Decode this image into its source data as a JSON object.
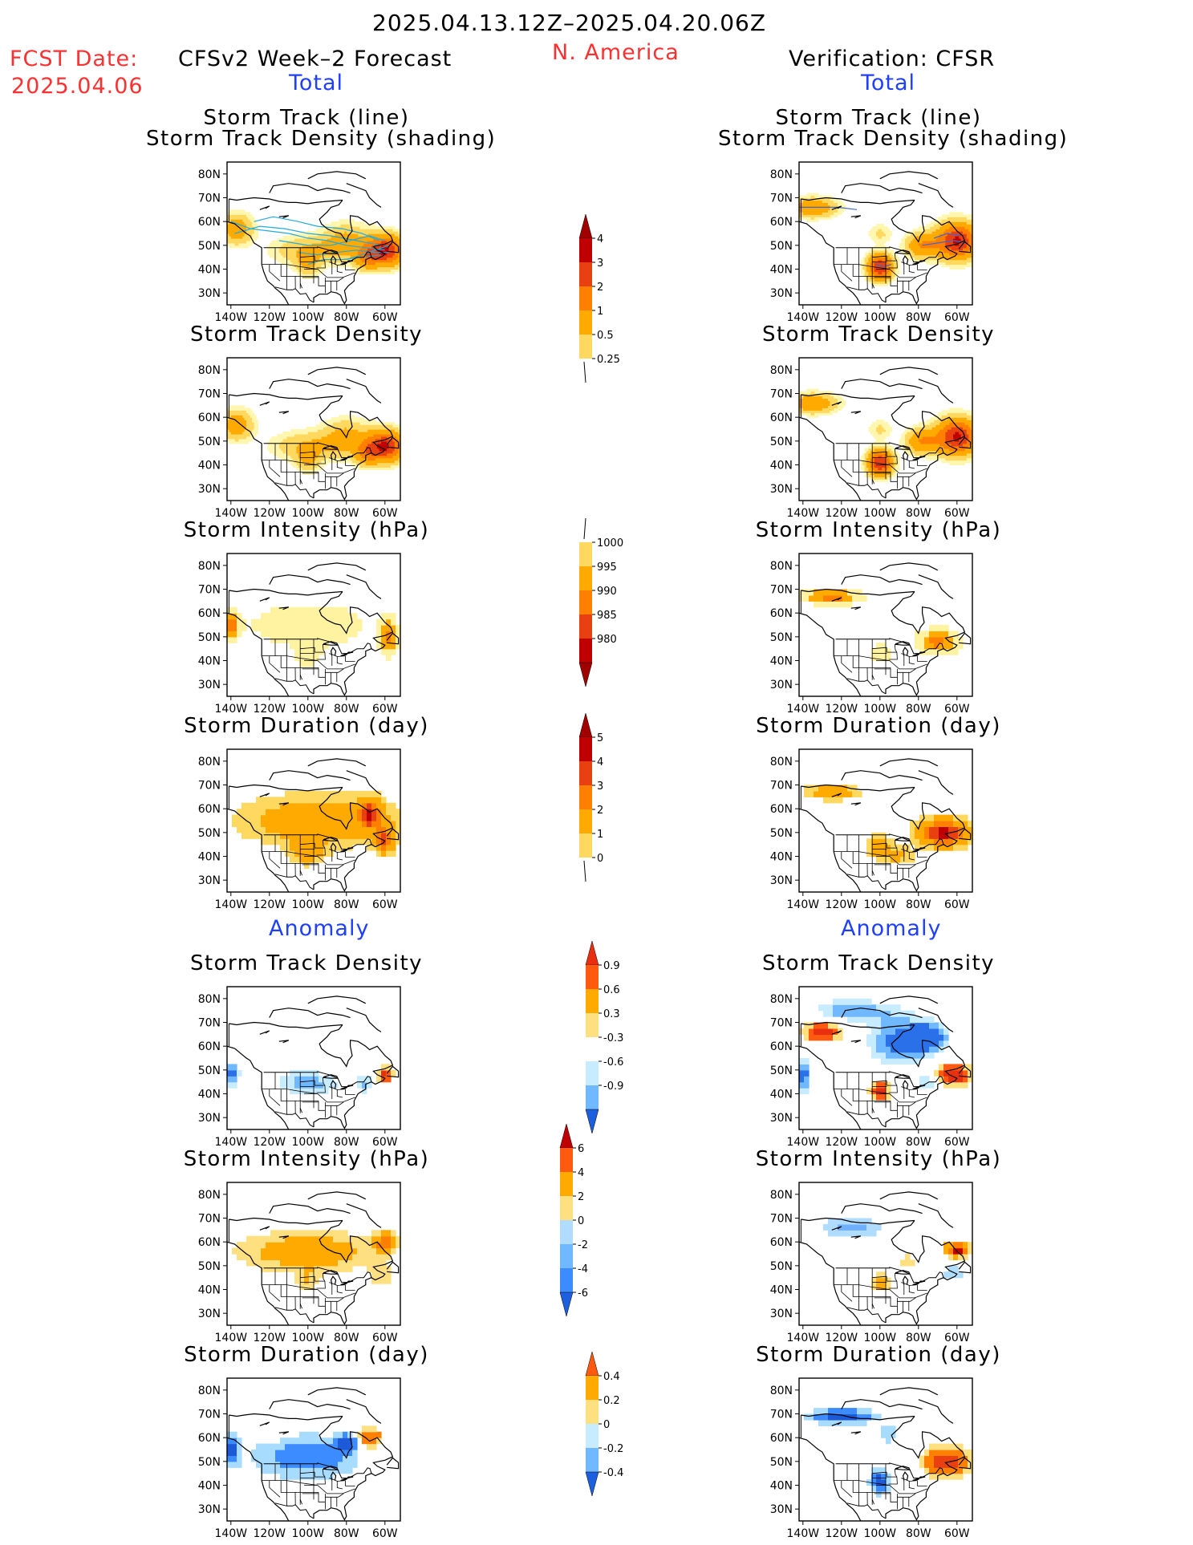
{
  "header": {
    "date_range": "2025.04.13.12Z–2025.04.20.06Z",
    "fcst_label": "FCST Date:",
    "fcst_date": "2025.04.06",
    "left_title": "CFSv2 Week–2 Forecast",
    "region": "N. America",
    "right_title": "Verification: CFSR",
    "total_left": "Total",
    "total_right": "Total",
    "anomaly_left": "Anomaly",
    "anomaly_right": "Anomaly"
  },
  "panel_titles": {
    "track_line": "Storm Track (line)",
    "track_shading": "Storm Track Density (shading)",
    "density": "Storm Track Density",
    "intensity": "Storm Intensity (hPa)",
    "duration": "Storm Duration (day)"
  },
  "axes": {
    "lat_labels": [
      "80N",
      "70N",
      "60N",
      "50N",
      "40N",
      "30N"
    ],
    "lon_labels": [
      "140W",
      "120W",
      "100W",
      "80W",
      "60W"
    ]
  },
  "colors": {
    "warm": [
      "#fff7b0",
      "#ffd860",
      "#ffaa00",
      "#ff8000",
      "#e84010",
      "#c00000",
      "#a00000"
    ],
    "cool": [
      "#cfefff",
      "#a0d8ff",
      "#70b8ff",
      "#3c8cff",
      "#1c60e0"
    ],
    "track_line_fcst": "#22aadd",
    "track_line_ver": "#4466cc"
  },
  "chart_data": [
    {
      "type": "heatmap",
      "panel": "fcst-total-track",
      "title": "Storm Track (line) / Storm Track Density (shading)",
      "colorbar": [
        "0.25",
        "0.5",
        "1",
        "2",
        "3",
        "4"
      ],
      "features": [
        "density maxima near 50N 60W (Atlantic Canada)",
        "secondary near 55N 135W (Gulf of Alaska)",
        "moderate band 45-55N across Canada"
      ]
    },
    {
      "type": "heatmap",
      "panel": "ver-total-track",
      "title": "Storm Track (line) / Storm Track Density (shading)",
      "features": [
        "maxima near 50N 55W",
        "maximum near 42N 100W (central Plains)",
        "band near 65N 130W"
      ]
    },
    {
      "type": "heatmap",
      "panel": "fcst-total-intensity",
      "title": "Storm Intensity (hPa)",
      "colorbar": [
        "1000",
        "995",
        "990",
        "985",
        "980"
      ]
    },
    {
      "type": "heatmap",
      "panel": "fcst-total-duration",
      "title": "Storm Duration (day)",
      "colorbar": [
        "0",
        "1",
        "2",
        "3",
        "4",
        "5"
      ]
    },
    {
      "type": "heatmap",
      "panel": "fcst-anom-density",
      "title": "Storm Track Density",
      "colorbar": [
        "-0.9",
        "-0.6",
        "-0.3",
        "0.3",
        "0.6",
        "0.9"
      ]
    },
    {
      "type": "heatmap",
      "panel": "fcst-anom-intensity",
      "title": "Storm Intensity (hPa)",
      "colorbar": [
        "-6",
        "-4",
        "-2",
        "0",
        "2",
        "4",
        "6"
      ]
    },
    {
      "type": "heatmap",
      "panel": "fcst-anom-duration",
      "title": "Storm Duration (day)",
      "colorbar": [
        "-0.4",
        "-0.2",
        "0",
        "0.2",
        "0.4"
      ]
    }
  ],
  "colorbars": {
    "total_density": {
      "labels": [
        "4",
        "3",
        "2",
        "1",
        "0.5",
        "0.25"
      ]
    },
    "total_intensity": {
      "labels": [
        "1000",
        "995",
        "990",
        "985",
        "980"
      ]
    },
    "total_duration": {
      "labels": [
        "5",
        "4",
        "3",
        "2",
        "1",
        "0"
      ]
    },
    "anom_density": {
      "labels": [
        "0.9",
        "0.6",
        "0.3",
        "-0.3",
        "-0.6",
        "-0.9"
      ]
    },
    "anom_intensity": {
      "labels": [
        "6",
        "4",
        "2",
        "0",
        "-2",
        "-4",
        "-6"
      ]
    },
    "anom_duration": {
      "labels": [
        "0.4",
        "0.2",
        "0",
        "-0.2",
        "-0.4"
      ]
    }
  }
}
